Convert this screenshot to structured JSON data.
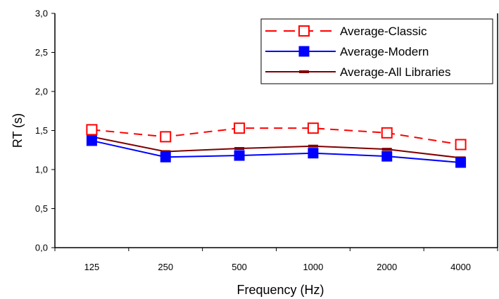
{
  "chart_data": {
    "type": "line",
    "categories": [
      "125",
      "250",
      "500",
      "1000",
      "2000",
      "4000"
    ],
    "xlabel": "Frequency (Hz)",
    "ylabel": "RT (s)",
    "ylim": [
      0,
      3
    ],
    "yticks": [
      "0,0",
      "0,5",
      "1,0",
      "1,5",
      "2,0",
      "2,5",
      "3,0"
    ],
    "grid": false,
    "legend_position": "top-right",
    "series": [
      {
        "name": "Average-Classic",
        "values": [
          1.51,
          1.42,
          1.53,
          1.53,
          1.47,
          1.32
        ],
        "color": "#ff0000",
        "marker": "open-square",
        "line": "dashed"
      },
      {
        "name": "Average-Modern",
        "values": [
          1.37,
          1.16,
          1.18,
          1.21,
          1.17,
          1.09
        ],
        "color": "#0000ff",
        "marker": "filled-square",
        "line": "solid"
      },
      {
        "name": "Average-All Libraries",
        "values": [
          1.42,
          1.23,
          1.27,
          1.3,
          1.26,
          1.15
        ],
        "color": "#800000",
        "marker": "dash",
        "line": "solid"
      }
    ]
  }
}
